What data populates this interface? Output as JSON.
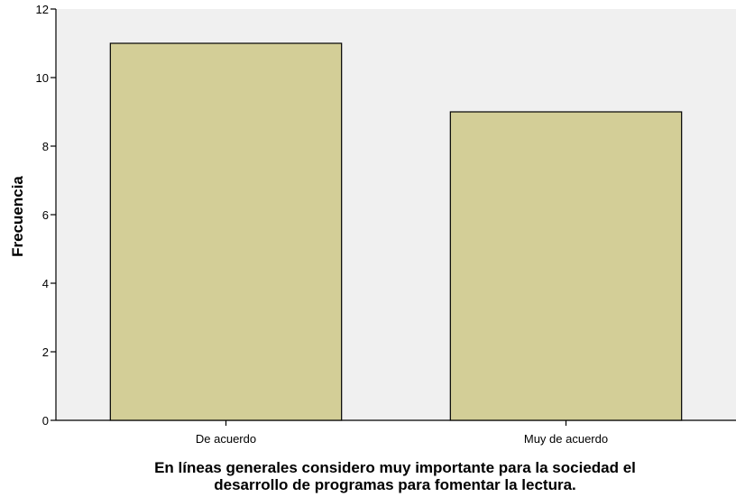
{
  "chart_data": {
    "type": "bar",
    "categories": [
      "De acuerdo",
      "Muy de acuerdo"
    ],
    "values": [
      11,
      9
    ],
    "xlabel_lines": [
      "En líneas generales considero muy importante para la sociedad el",
      "desarrollo de programas para fomentar la lectura."
    ],
    "ylabel": "Frecuencia",
    "ylim": [
      0,
      12
    ],
    "yticks": [
      0,
      2,
      4,
      6,
      8,
      10,
      12
    ],
    "grid": false,
    "legend": "none",
    "colors": {
      "plot_background": "#f0f0f0",
      "bar_fill": "#d3ce97",
      "bar_stroke": "#000000",
      "axis": "#000000"
    }
  }
}
